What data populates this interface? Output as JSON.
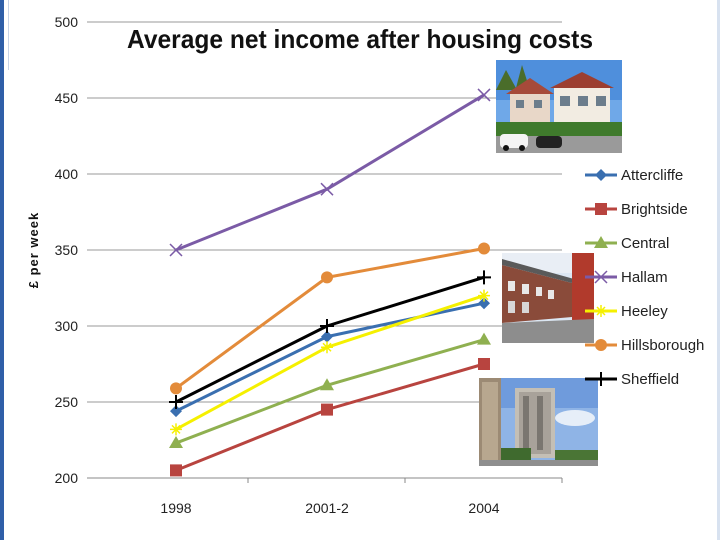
{
  "chart_data": {
    "type": "line",
    "title": "Average net income after housing costs",
    "ylabel": "£ per week",
    "xlabel": "",
    "categories": [
      "1998",
      "2001-2",
      "2004"
    ],
    "ylim": [
      200,
      500
    ],
    "yticks": [
      "200",
      "250",
      "300",
      "350",
      "400",
      "450",
      "500"
    ],
    "grid": true,
    "legend_position": "right",
    "series": [
      {
        "name": "Attercliffe",
        "values": [
          244,
          293,
          315
        ],
        "color": "#3a6fb0",
        "marker": "diamond"
      },
      {
        "name": "Brightside",
        "values": [
          205,
          245,
          275
        ],
        "color": "#b8443f",
        "marker": "square"
      },
      {
        "name": "Central",
        "values": [
          223,
          261,
          291
        ],
        "color": "#8fb050",
        "marker": "triangle"
      },
      {
        "name": "Hallam",
        "values": [
          350,
          390,
          452
        ],
        "color": "#7b5ba6",
        "marker": "x"
      },
      {
        "name": "Heeley",
        "values": [
          232,
          286,
          320
        ],
        "color": "#f5f000",
        "marker": "star"
      },
      {
        "name": "Hillsborough",
        "values": [
          259,
          332,
          351
        ],
        "color": "#e38b3a",
        "marker": "circle"
      },
      {
        "name": "Sheffield",
        "values": [
          250,
          300,
          332
        ],
        "color": "#000000",
        "marker": "plus"
      }
    ]
  },
  "photos": [
    {
      "name": "photo-suburban-houses-icon"
    },
    {
      "name": "photo-terraced-street-icon"
    },
    {
      "name": "photo-tower-block-icon"
    }
  ]
}
